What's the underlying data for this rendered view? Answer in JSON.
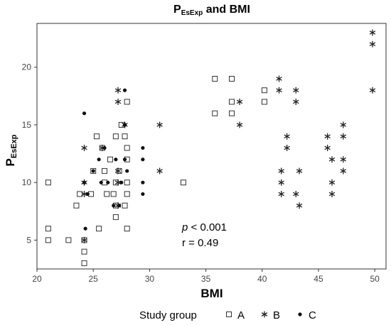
{
  "chart_data": {
    "type": "scatter",
    "title": {
      "main": "P",
      "sub": "EsExp",
      "rest": " and BMI"
    },
    "xlabel": "BMI",
    "ylabel": {
      "main": "P",
      "sub": "EsExp"
    },
    "xlim": [
      20,
      51
    ],
    "ylim": [
      2.5,
      23.8
    ],
    "xticks": [
      20,
      25,
      30,
      35,
      40,
      45,
      50
    ],
    "yticks": [
      5,
      10,
      15,
      20
    ],
    "grid": false,
    "legend": {
      "title": "Study group",
      "position": "bottom"
    },
    "annotations": {
      "p_italic": "p",
      "p_rest": " < 0.001",
      "r": "r = 0.49"
    },
    "series": [
      {
        "name": "A",
        "marker": "open-square",
        "points": [
          [
            21,
            10
          ],
          [
            21,
            6
          ],
          [
            21,
            5
          ],
          [
            22.8,
            5
          ],
          [
            23.5,
            8
          ],
          [
            23.8,
            9
          ],
          [
            24.2,
            5
          ],
          [
            24.2,
            4
          ],
          [
            24.2,
            3
          ],
          [
            24.8,
            9
          ],
          [
            25,
            11
          ],
          [
            25.3,
            14
          ],
          [
            25.5,
            6
          ],
          [
            25.8,
            13
          ],
          [
            26,
            11
          ],
          [
            26,
            10
          ],
          [
            26.2,
            9
          ],
          [
            26.5,
            12
          ],
          [
            26.8,
            9
          ],
          [
            27,
            14
          ],
          [
            27,
            10
          ],
          [
            27,
            8
          ],
          [
            27,
            7
          ],
          [
            27.3,
            11
          ],
          [
            27.5,
            15
          ],
          [
            27.8,
            14
          ],
          [
            27.8,
            8
          ],
          [
            28,
            17
          ],
          [
            28,
            13
          ],
          [
            28,
            12
          ],
          [
            28,
            10
          ],
          [
            28,
            9
          ],
          [
            28,
            6
          ],
          [
            33,
            10
          ],
          [
            35.8,
            19
          ],
          [
            35.8,
            16
          ],
          [
            37.3,
            19
          ],
          [
            37.3,
            17
          ],
          [
            37.3,
            16
          ],
          [
            40.2,
            18
          ],
          [
            40.2,
            17
          ]
        ]
      },
      {
        "name": "B",
        "marker": "asterisk",
        "points": [
          [
            24.2,
            13
          ],
          [
            24.2,
            10
          ],
          [
            24.2,
            9
          ],
          [
            24.2,
            5
          ],
          [
            25.8,
            13
          ],
          [
            27.2,
            18
          ],
          [
            27.2,
            17
          ],
          [
            27.2,
            11
          ],
          [
            27.2,
            10
          ],
          [
            27.2,
            8
          ],
          [
            27.8,
            15
          ],
          [
            30.9,
            15
          ],
          [
            30.9,
            11
          ],
          [
            38,
            17
          ],
          [
            38,
            15
          ],
          [
            41.5,
            19
          ],
          [
            41.5,
            18
          ],
          [
            41.7,
            11
          ],
          [
            41.7,
            10
          ],
          [
            41.7,
            9
          ],
          [
            42.2,
            14
          ],
          [
            42.2,
            13
          ],
          [
            43,
            18
          ],
          [
            43,
            17
          ],
          [
            43,
            9
          ],
          [
            43.3,
            11
          ],
          [
            43.3,
            8
          ],
          [
            45.8,
            14
          ],
          [
            45.8,
            13
          ],
          [
            46.2,
            12
          ],
          [
            46.2,
            10
          ],
          [
            46.2,
            9
          ],
          [
            47.2,
            15
          ],
          [
            47.2,
            14
          ],
          [
            47.2,
            12
          ],
          [
            47.2,
            11
          ],
          [
            49.8,
            23
          ],
          [
            49.8,
            22
          ],
          [
            49.8,
            18
          ]
        ]
      },
      {
        "name": "C",
        "marker": "filled-circle",
        "points": [
          [
            24.2,
            16
          ],
          [
            24.2,
            10
          ],
          [
            24.3,
            6
          ],
          [
            24.5,
            9
          ],
          [
            25,
            11
          ],
          [
            25.5,
            12
          ],
          [
            25.7,
            10
          ],
          [
            26,
            13
          ],
          [
            26.3,
            10
          ],
          [
            26.8,
            8
          ],
          [
            27,
            12
          ],
          [
            27.3,
            8
          ],
          [
            27.5,
            10
          ],
          [
            27.8,
            18
          ],
          [
            27.8,
            15
          ],
          [
            27.8,
            12
          ],
          [
            28,
            11
          ],
          [
            29.4,
            13
          ],
          [
            29.4,
            12
          ],
          [
            29.4,
            10
          ],
          [
            29.4,
            9
          ]
        ]
      }
    ]
  }
}
